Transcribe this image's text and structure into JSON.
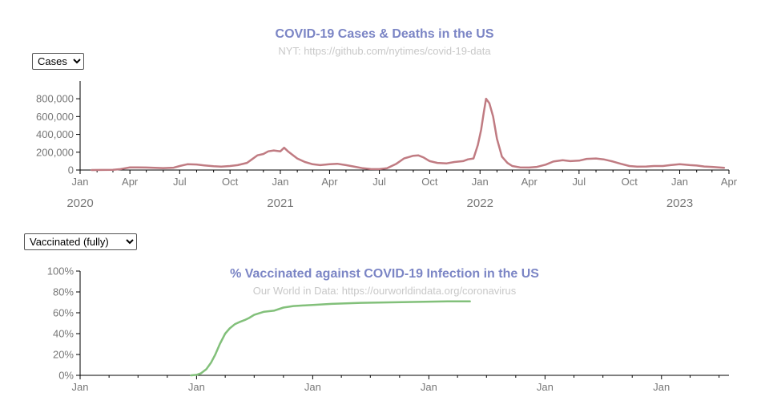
{
  "cases_panel": {
    "title": "COVID-19 Cases & Deaths in the US",
    "subtitle": "NYT: https://github.com/nytimes/covid-19-data",
    "dropdown": {
      "selected": "Cases"
    }
  },
  "vacc_panel": {
    "title": "% Vaccinated against COVID-19 Infection in the US",
    "subtitle": "Our World in Data: https://ourworldindata.org/coronavirus",
    "dropdown": {
      "selected": "Vaccinated (fully)"
    }
  },
  "colors": {
    "cases": "#c07b82",
    "vaccinated": "#82c07a",
    "title": "#7b85c5",
    "axis": "#777777"
  },
  "chart_data": [
    {
      "type": "line",
      "title": "COVID-19 Cases & Deaths in the US",
      "subtitle": "NYT: https://github.com/nytimes/covid-19-data",
      "xlabel": "",
      "ylabel": "",
      "x_range": [
        "2020-01-01",
        "2023-04-01"
      ],
      "ylim": [
        0,
        900000
      ],
      "y_ticks": [
        "0",
        "200,000",
        "400,000",
        "600,000",
        "800,000"
      ],
      "x_tick_labels": [
        "Jan",
        "Apr",
        "Jul",
        "Oct",
        "Jan",
        "Apr",
        "Jul",
        "Oct",
        "Jan",
        "Apr",
        "Jul",
        "Oct",
        "Jan",
        "Apr"
      ],
      "year_labels": [
        "2020",
        "2021",
        "2022",
        "2023"
      ],
      "grid": false,
      "series": [
        {
          "x": [
            "2020-01-22",
            "2020-03-01",
            "2020-03-15",
            "2020-04-01",
            "2020-04-15",
            "2020-05-01",
            "2020-06-01",
            "2020-06-20",
            "2020-07-01",
            "2020-07-15",
            "2020-08-01",
            "2020-08-15",
            "2020-09-01",
            "2020-09-15",
            "2020-10-01",
            "2020-10-15",
            "2020-11-01",
            "2020-11-10",
            "2020-11-20",
            "2020-12-01",
            "2020-12-10",
            "2020-12-20",
            "2021-01-01",
            "2021-01-08",
            "2021-01-15",
            "2021-02-01",
            "2021-02-15",
            "2021-03-01",
            "2021-03-15",
            "2021-04-01",
            "2021-04-15",
            "2021-05-01",
            "2021-05-15",
            "2021-06-01",
            "2021-06-15",
            "2021-07-01",
            "2021-07-15",
            "2021-08-01",
            "2021-08-15",
            "2021-09-01",
            "2021-09-10",
            "2021-09-20",
            "2021-10-01",
            "2021-10-15",
            "2021-11-01",
            "2021-11-15",
            "2021-12-01",
            "2021-12-10",
            "2021-12-20",
            "2021-12-28",
            "2022-01-03",
            "2022-01-08",
            "2022-01-12",
            "2022-01-18",
            "2022-01-25",
            "2022-02-01",
            "2022-02-10",
            "2022-02-20",
            "2022-03-01",
            "2022-03-15",
            "2022-04-01",
            "2022-04-15",
            "2022-05-01",
            "2022-05-15",
            "2022-06-01",
            "2022-06-15",
            "2022-07-01",
            "2022-07-15",
            "2022-08-01",
            "2022-08-15",
            "2022-09-01",
            "2022-09-15",
            "2022-10-01",
            "2022-10-15",
            "2022-11-01",
            "2022-11-15",
            "2022-12-01",
            "2022-12-15",
            "2023-01-01",
            "2023-01-10",
            "2023-01-20",
            "2023-02-01",
            "2023-02-15",
            "2023-03-01",
            "2023-03-23"
          ],
          "values": [
            0,
            2000,
            10000,
            30000,
            30000,
            28000,
            22000,
            26000,
            45000,
            65000,
            62000,
            52000,
            42000,
            38000,
            45000,
            55000,
            80000,
            120000,
            165000,
            180000,
            210000,
            220000,
            210000,
            250000,
            210000,
            130000,
            90000,
            65000,
            55000,
            65000,
            70000,
            55000,
            40000,
            20000,
            12000,
            10000,
            20000,
            70000,
            130000,
            160000,
            165000,
            140000,
            100000,
            80000,
            75000,
            90000,
            100000,
            120000,
            130000,
            280000,
            450000,
            650000,
            800000,
            750000,
            600000,
            350000,
            150000,
            80000,
            45000,
            30000,
            28000,
            35000,
            60000,
            95000,
            110000,
            100000,
            105000,
            125000,
            130000,
            120000,
            95000,
            70000,
            45000,
            38000,
            40000,
            45000,
            45000,
            55000,
            65000,
            60000,
            55000,
            50000,
            40000,
            35000,
            25000
          ]
        }
      ]
    },
    {
      "type": "line",
      "title": "% Vaccinated against COVID-19 Infection in the US",
      "subtitle": "Our World in Data: https://ourworldindata.org/coronavirus",
      "xlabel": "",
      "ylabel": "",
      "x_range": [
        "2020-01-01",
        "2025-08-01"
      ],
      "ylim": [
        0,
        100
      ],
      "y_ticks": [
        "0%",
        "20%",
        "40%",
        "60%",
        "80%",
        "100%"
      ],
      "x_tick_labels": [
        "Jan",
        "Jan",
        "Jan",
        "Jan",
        "Jan",
        "Jan"
      ],
      "grid": false,
      "series": [
        {
          "x": [
            "2020-12-15",
            "2021-01-01",
            "2021-01-15",
            "2021-02-01",
            "2021-02-15",
            "2021-03-01",
            "2021-03-15",
            "2021-04-01",
            "2021-04-15",
            "2021-05-01",
            "2021-05-15",
            "2021-06-01",
            "2021-06-15",
            "2021-07-01",
            "2021-08-01",
            "2021-09-01",
            "2021-10-01",
            "2021-11-01",
            "2021-12-01",
            "2022-01-01",
            "2022-03-01",
            "2022-06-01",
            "2022-09-01",
            "2022-12-01",
            "2023-03-01",
            "2023-05-10"
          ],
          "values": [
            0,
            0.5,
            2,
            6,
            12,
            20,
            30,
            40,
            45,
            49,
            51,
            53,
            55,
            58,
            61,
            62,
            65,
            66.5,
            67,
            67.5,
            68.5,
            69.5,
            70,
            70.5,
            71,
            71
          ]
        }
      ]
    }
  ]
}
